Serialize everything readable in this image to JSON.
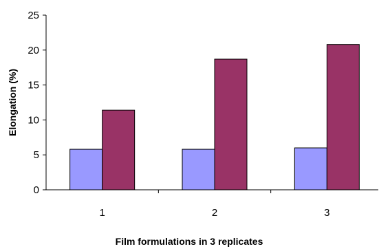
{
  "chart_data": {
    "type": "bar",
    "title": "",
    "xlabel": "Film formulations in 3 replicates",
    "ylabel": "Elongation (%)",
    "categories": [
      "1",
      "2",
      "3"
    ],
    "ylim": [
      0,
      25
    ],
    "yticks": [
      0,
      5,
      10,
      15,
      20,
      25
    ],
    "grid": false,
    "legend": "none",
    "series": [
      {
        "values": [
          5.8,
          5.8,
          6.0
        ],
        "color": "#9999ff"
      },
      {
        "values": [
          11.4,
          18.7,
          20.8
        ],
        "color": "#993366"
      }
    ]
  }
}
